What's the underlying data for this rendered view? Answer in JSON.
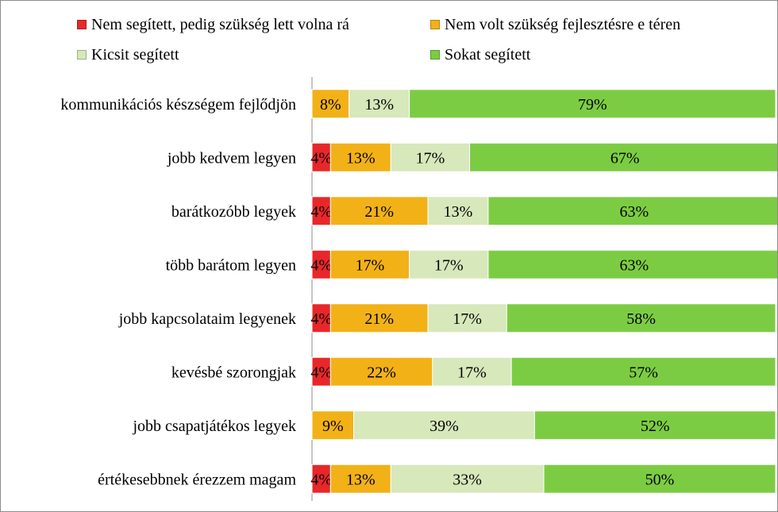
{
  "chart_data": {
    "type": "bar",
    "orientation": "horizontal",
    "stacked": true,
    "percent": true,
    "xlim": [
      0,
      100
    ],
    "title": "",
    "xlabel": "",
    "ylabel": "",
    "legend_position": "top",
    "grid": false,
    "categories": [
      "kommunikációs készségem fejlődjön",
      "jobb kedvem legyen",
      "barátkozóbb legyek",
      "több barátom legyen",
      "jobb kapcsolataim legyenek",
      "kevésbé szorongjak",
      "jobb csapatjátékos legyek",
      "értékesebbnek érezzem magam"
    ],
    "series": [
      {
        "name": "Nem segített, pedig szükség lett volna rá",
        "color": "#e8272a",
        "values": [
          0,
          4,
          4,
          4,
          4,
          4,
          0,
          4
        ],
        "labels": [
          "",
          "4%",
          "4%",
          "4%",
          "4%",
          "4%",
          "",
          "4%"
        ]
      },
      {
        "name": "Nem volt szükség fejlesztésre e téren",
        "color": "#f2b117",
        "values": [
          8,
          13,
          21,
          17,
          21,
          22,
          9,
          13
        ],
        "labels": [
          "8%",
          "13%",
          "21%",
          "17%",
          "21%",
          "22%",
          "9%",
          "13%"
        ]
      },
      {
        "name": "Kicsit segített",
        "color": "#d7e8bb",
        "values": [
          13,
          17,
          13,
          17,
          17,
          17,
          39,
          33
        ],
        "labels": [
          "13%",
          "17%",
          "13%",
          "17%",
          "17%",
          "17%",
          "39%",
          "33%"
        ]
      },
      {
        "name": "Sokat segített",
        "color": "#7ccc43",
        "values": [
          79,
          67,
          63,
          63,
          58,
          57,
          52,
          50
        ],
        "labels": [
          "79%",
          "67%",
          "63%",
          "63%",
          "58%",
          "57%",
          "52%",
          "50%"
        ]
      }
    ]
  }
}
